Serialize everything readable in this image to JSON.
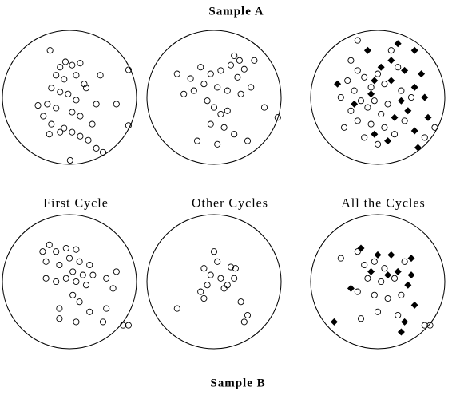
{
  "title_top": "Sample A",
  "title_bottom": "Sample B",
  "column_labels": [
    "First Cycle",
    "Other Cycles",
    "All the Cycles"
  ],
  "chart_data": [
    {
      "type": "scatter",
      "series": [
        {
          "marker": "circle",
          "color": "#000000",
          "x": [
            -0.29,
            0.88,
            -0.06,
            -0.14,
            0.04,
            0.16,
            -0.2,
            -0.08,
            0.1,
            0.22,
            0.25,
            -0.27,
            -0.14,
            -0.02,
            0.1,
            -0.33,
            -0.2,
            0.04,
            0.16,
            -0.39,
            -0.27,
            -0.08,
            0.04,
            0.16,
            0.28,
            0.4,
            0.01,
            0.5,
            0.88,
            0.7,
            0.46,
            -0.47,
            0.4,
            -0.14,
            0.34,
            -0.3
          ],
          "y": [
            0.7,
            0.41,
            0.53,
            0.45,
            0.48,
            0.51,
            0.33,
            0.27,
            0.33,
            0.2,
            0.14,
            0.14,
            0.08,
            0.05,
            -0.04,
            -0.1,
            -0.16,
            -0.22,
            -0.28,
            -0.28,
            -0.4,
            -0.46,
            -0.52,
            -0.58,
            -0.64,
            -0.76,
            -0.94,
            -0.82,
            -0.42,
            -0.1,
            0.33,
            -0.12,
            -0.1,
            -0.52,
            -0.4,
            -0.55
          ]
        }
      ]
    },
    {
      "type": "scatter",
      "series": [
        {
          "marker": "circle",
          "color": "#000000",
          "x": [
            0.3,
            0.38,
            0.25,
            0.45,
            0.35,
            0.1,
            -0.05,
            -0.2,
            -0.35,
            -0.15,
            0.05,
            -0.3,
            -0.45,
            0.2,
            0.4,
            0.55,
            -0.1,
            0.0,
            0.1,
            0.2,
            -0.05,
            0.15,
            0.3,
            -0.25,
            0.05,
            0.5,
            0.95,
            0.75,
            -0.55,
            0.6
          ],
          "y": [
            0.62,
            0.55,
            0.48,
            0.42,
            0.3,
            0.4,
            0.35,
            0.45,
            0.28,
            0.2,
            0.15,
            0.1,
            0.05,
            0.1,
            0.05,
            0.15,
            -0.05,
            -0.15,
            -0.25,
            -0.2,
            -0.4,
            -0.45,
            -0.55,
            -0.65,
            -0.7,
            -0.65,
            -0.3,
            -0.15,
            0.35,
            0.55
          ]
        }
      ]
    },
    {
      "type": "scatter",
      "series": [
        {
          "marker": "circle",
          "color": "#000000",
          "x": [
            -0.4,
            -0.3,
            -0.45,
            -0.35,
            -0.2,
            -0.1,
            0.0,
            0.1,
            -0.25,
            -0.15,
            -0.05,
            0.05,
            0.15,
            -0.4,
            -0.3,
            -0.1,
            0.1,
            0.25,
            0.4,
            -0.2,
            0.0,
            0.35,
            0.5,
            0.3,
            0.7,
            0.85,
            -0.3,
            0.2,
            -0.55,
            -0.5
          ],
          "y": [
            0.55,
            0.4,
            0.25,
            0.1,
            0.3,
            0.15,
            0.35,
            0.2,
            -0.05,
            -0.15,
            -0.05,
            -0.25,
            -0.1,
            -0.2,
            -0.35,
            -0.4,
            -0.45,
            -0.55,
            -0.35,
            -0.6,
            -0.7,
            0.1,
            0.0,
            0.45,
            -0.6,
            -0.45,
            0.85,
            0.7,
            0.0,
            -0.45
          ]
        },
        {
          "marker": "diamond",
          "color": "#000000",
          "x": [
            -0.15,
            0.3,
            0.55,
            0.2,
            0.4,
            0.65,
            0.05,
            -0.05,
            0.2,
            0.35,
            0.45,
            0.25,
            -0.6,
            -0.35,
            0.7,
            0.75,
            0.55,
            0.15,
            0.6,
            -0.05,
            0.55,
            -0.1
          ],
          "y": [
            0.7,
            0.8,
            0.7,
            0.55,
            0.4,
            0.35,
            0.45,
            0.25,
            0.25,
            -0.05,
            -0.2,
            -0.3,
            0.2,
            -0.1,
            0.0,
            -0.3,
            -0.5,
            -0.65,
            -0.75,
            -0.55,
            0.15,
            0.05
          ]
        }
      ]
    },
    {
      "type": "scatter",
      "series": [
        {
          "marker": "circle",
          "color": "#000000",
          "x": [
            -0.3,
            -0.2,
            -0.05,
            0.1,
            0.0,
            -0.35,
            -0.15,
            0.15,
            0.3,
            0.05,
            0.2,
            0.35,
            -0.05,
            0.1,
            0.25,
            -0.2,
            0.55,
            0.7,
            0.65,
            -0.35,
            0.05,
            0.15,
            -0.15,
            -0.15,
            0.3,
            0.55,
            0.5,
            0.8,
            0.88,
            0.1,
            -0.4
          ],
          "y": [
            0.55,
            0.45,
            0.5,
            0.48,
            0.35,
            0.3,
            0.25,
            0.3,
            0.25,
            0.15,
            0.1,
            0.1,
            0.05,
            0.0,
            -0.05,
            0.0,
            0.05,
            0.15,
            -0.1,
            0.05,
            -0.2,
            -0.3,
            -0.4,
            -0.55,
            -0.45,
            -0.4,
            -0.6,
            -0.65,
            -0.65,
            -0.6,
            0.45
          ]
        }
      ]
    },
    {
      "type": "scatter",
      "series": [
        {
          "marker": "circle",
          "color": "#000000",
          "x": [
            0.0,
            0.05,
            0.25,
            0.32,
            -0.15,
            -0.05,
            0.1,
            0.3,
            -0.1,
            0.15,
            -0.2,
            -0.15,
            0.4,
            -0.55,
            0.5,
            0.45,
            0.2
          ],
          "y": [
            0.45,
            0.3,
            0.22,
            0.2,
            0.2,
            0.1,
            0.05,
            0.05,
            -0.05,
            -0.1,
            -0.15,
            -0.25,
            -0.3,
            -0.4,
            -0.5,
            -0.6,
            -0.05
          ]
        }
      ]
    },
    {
      "type": "scatter",
      "series": [
        {
          "marker": "circle",
          "color": "#000000",
          "x": [
            -0.55,
            -0.3,
            -0.2,
            -0.05,
            0.1,
            -0.15,
            0.05,
            0.25,
            -0.3,
            -0.05,
            0.15,
            0.35,
            0.0,
            -0.25,
            0.3,
            0.7,
            0.78,
            0.4
          ],
          "y": [
            0.35,
            0.45,
            0.25,
            0.3,
            0.2,
            0.05,
            0.0,
            0.05,
            -0.15,
            -0.2,
            -0.25,
            -0.2,
            -0.45,
            -0.55,
            -0.5,
            -0.65,
            -0.65,
            0.3
          ]
        },
        {
          "marker": "diamond",
          "color": "#000000",
          "x": [
            -0.25,
            0.0,
            0.2,
            0.5,
            -0.1,
            0.15,
            0.3,
            0.5,
            0.45,
            -0.4,
            -0.65,
            0.4,
            0.35,
            0.55
          ],
          "y": [
            0.5,
            0.4,
            0.4,
            0.35,
            0.15,
            0.1,
            0.15,
            0.1,
            -0.05,
            -0.1,
            -0.6,
            -0.6,
            -0.75,
            -0.35
          ]
        }
      ]
    }
  ]
}
